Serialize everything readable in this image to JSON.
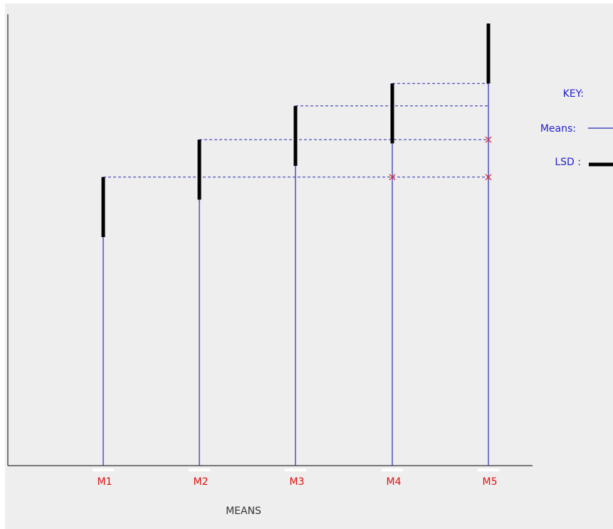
{
  "chart_data": {
    "type": "lsd-means-plot",
    "title": "",
    "xlabel": "MEANS",
    "ylabel": "",
    "categories": [
      "M1",
      "M2",
      "M3",
      "M4",
      "M5"
    ],
    "means": [
      7.7,
      8.7,
      9.6,
      10.2,
      11.8
    ],
    "lsd": 1.6,
    "ylim": [
      0,
      11.8
    ],
    "lsd_reference_lines": [
      {
        "from": "M1",
        "to": "M5",
        "crosses": [
          "M4",
          "M5"
        ]
      },
      {
        "from": "M2",
        "to": "M5",
        "crosses": [
          "M5"
        ]
      },
      {
        "from": "M3",
        "to": "M5",
        "crosses": []
      },
      {
        "from": "M4",
        "to": "M5",
        "crosses": []
      }
    ],
    "key": {
      "title": "KEY:",
      "means_label": "Means:",
      "lsd_label": "LSD :"
    },
    "colors": {
      "mean_line": "#2a2ab4",
      "lsd_bar": "#000000",
      "category_label": "#dd1111",
      "key_text": "#2222cc",
      "cross": "#dd3344",
      "axis": "#000000"
    },
    "grid": false
  }
}
